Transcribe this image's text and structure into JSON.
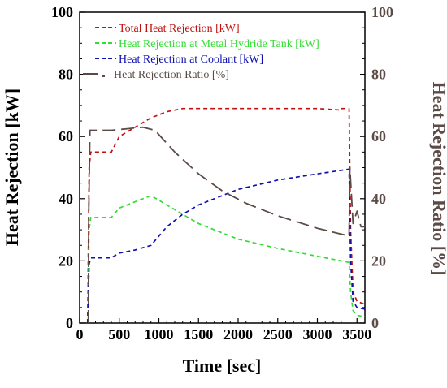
{
  "chart_data": {
    "type": "line",
    "title": "",
    "xlabel": "Time [sec]",
    "ylabel": "Heat Rejection [kW]",
    "y2label": "Heat Rejection Ratio [%]",
    "xlim": [
      0,
      3600
    ],
    "ylim": [
      0,
      100
    ],
    "y2lim": [
      0,
      100
    ],
    "xticks": [
      "0",
      "500",
      "1000",
      "1500",
      "2000",
      "2500",
      "3000",
      "3500"
    ],
    "xtick_values": [
      0,
      500,
      1000,
      1500,
      2000,
      2500,
      3000,
      3500
    ],
    "yticks": [
      "0",
      "20",
      "40",
      "60",
      "80",
      "100"
    ],
    "ytick_values": [
      0,
      20,
      40,
      60,
      80,
      100
    ],
    "y2ticks": [
      "0",
      "20",
      "40",
      "60",
      "80",
      "100"
    ],
    "y2tick_values": [
      0,
      20,
      40,
      60,
      80,
      100
    ],
    "grid": false,
    "legend_position": "top-left",
    "series": [
      {
        "name": "Total Heat Rejection [kW]",
        "color": "#c01010",
        "dash": "5,4",
        "axis": "left",
        "x": [
          100,
          120,
          140,
          400,
          500,
          700,
          900,
          1100,
          1300,
          1500,
          2000,
          2500,
          3000,
          3300,
          3310,
          3320,
          3400,
          3420,
          3450,
          3500,
          3600
        ],
        "y": [
          0,
          50,
          55,
          55,
          60,
          63,
          66,
          68,
          69,
          69,
          69,
          69,
          69,
          68.5,
          69,
          69,
          69,
          30,
          10,
          7,
          6
        ]
      },
      {
        "name": "Heat Rejection at Metal Hydride Tank [kW]",
        "color": "#33dd33",
        "dash": "5,4",
        "axis": "left",
        "x": [
          100,
          120,
          140,
          400,
          500,
          700,
          900,
          1100,
          1300,
          1500,
          2000,
          2500,
          3000,
          3400,
          3420,
          3450,
          3500,
          3600
        ],
        "y": [
          0,
          30,
          34,
          34,
          37,
          39,
          41,
          38,
          35,
          32,
          27,
          24,
          21.5,
          19.5,
          10,
          4,
          2.5,
          2
        ]
      },
      {
        "name": "Heat Rejection at Coolant [kW]",
        "color": "#1010b0",
        "dash": "5,4",
        "axis": "left",
        "x": [
          100,
          120,
          140,
          400,
          500,
          700,
          900,
          1100,
          1300,
          1500,
          2000,
          2500,
          3000,
          3400,
          3420,
          3450,
          3500,
          3600
        ],
        "y": [
          0,
          19,
          21,
          21,
          22.5,
          23.5,
          25,
          31,
          35,
          38,
          43,
          46,
          48,
          49.5,
          20,
          7,
          5,
          4.5
        ]
      },
      {
        "name": "Heat Rejection Ratio [%]",
        "color": "#5b4a46",
        "dash": "16,7",
        "axis": "right",
        "x": [
          110,
          115,
          130,
          400,
          600,
          800,
          950,
          1200,
          1500,
          1800,
          2100,
          2500,
          3000,
          3400,
          3410,
          3450,
          3500,
          3550,
          3600
        ],
        "y": [
          0,
          35,
          62,
          62,
          62.5,
          63,
          62,
          55,
          48,
          42.5,
          38.5,
          34.5,
          30.5,
          28,
          50,
          32,
          36,
          31,
          31
        ]
      }
    ]
  }
}
